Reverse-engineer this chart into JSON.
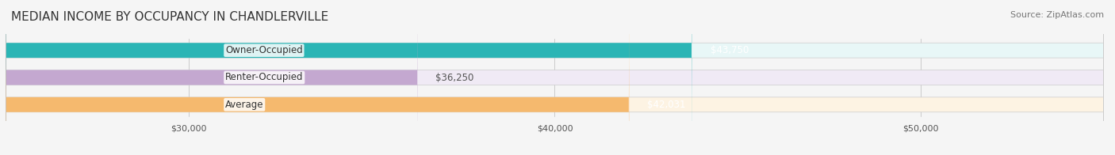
{
  "title": "MEDIAN INCOME BY OCCUPANCY IN CHANDLERVILLE",
  "source": "Source: ZipAtlas.com",
  "categories": [
    "Owner-Occupied",
    "Renter-Occupied",
    "Average"
  ],
  "values": [
    43750,
    36250,
    42031
  ],
  "labels": [
    "$43,750",
    "$36,250",
    "$42,031"
  ],
  "bar_colors": [
    "#2ab5b5",
    "#c4a8d0",
    "#f5b96e"
  ],
  "bar_bg_colors": [
    "#e8f7f7",
    "#f0eaf5",
    "#fdf3e3"
  ],
  "label_colors": [
    "#ffffff",
    "#666666",
    "#ffffff"
  ],
  "xlim": [
    25000,
    55000
  ],
  "xticks": [
    30000,
    40000,
    50000
  ],
  "xtick_labels": [
    "$30,000",
    "$40,000",
    "$50,000"
  ],
  "title_fontsize": 11,
  "source_fontsize": 8,
  "bar_label_fontsize": 8.5,
  "ylabel_fontsize": 8.5,
  "background_color": "#f5f5f5",
  "bar_bg_alpha": 1.0
}
